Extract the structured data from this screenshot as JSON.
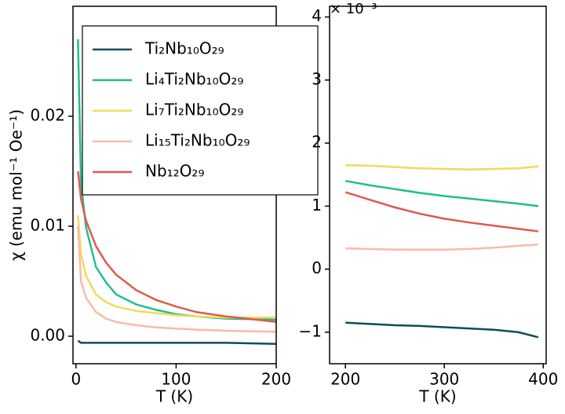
{
  "chart_data": [
    {
      "type": "line",
      "xlabel": "T (K)",
      "ylabel": "χ (emu mol⁻¹ Oe⁻¹)",
      "x": [
        2,
        5,
        10,
        20,
        30,
        40,
        60,
        80,
        100,
        120,
        150,
        200
      ],
      "xlim": [
        -3,
        200
      ],
      "xticks": [
        0,
        100,
        200
      ],
      "ylim": [
        -0.0025,
        0.03
      ],
      "yticks": [
        {
          "value": 0,
          "label": "0.00"
        },
        0.01,
        0.02
      ],
      "legend": "upper right",
      "series": [
        {
          "name": "Ti₂Nb₁₀O₂₉",
          "color": "#0b4f55",
          "values": [
            -0.0004,
            -0.0006,
            -0.0006,
            -0.0006,
            -0.0006,
            -0.0006,
            -0.0006,
            -0.0006,
            -0.0006,
            -0.0006,
            -0.0006,
            -0.0007
          ]
        },
        {
          "name": "Li₄Ti₂Nb₁₀O₂₉",
          "color": "#1fbf8f",
          "values": [
            0.027,
            0.014,
            0.0099,
            0.0063,
            0.0049,
            0.0038,
            0.0029,
            0.0024,
            0.002,
            0.0018,
            0.0016,
            0.0015
          ]
        },
        {
          "name": "Li₇Ti₂Nb₁₀O₂₉",
          "color": "#f3da58",
          "values": [
            0.011,
            0.0075,
            0.0055,
            0.0038,
            0.0031,
            0.0027,
            0.0023,
            0.0021,
            0.0019,
            0.0018,
            0.0017,
            0.0017
          ]
        },
        {
          "name": "Li₁₅Ti₂Nb₁₀O₂₉",
          "color": "#f8bbaa",
          "values": [
            0.01,
            0.005,
            0.0035,
            0.0022,
            0.0016,
            0.0013,
            0.001,
            0.0008,
            0.0007,
            0.0006,
            0.0005,
            0.0004
          ]
        },
        {
          "name": "Nb₁₂O₂₉",
          "color": "#e05a4e",
          "values": [
            0.015,
            0.0125,
            0.0105,
            0.0082,
            0.0067,
            0.0056,
            0.0042,
            0.0033,
            0.0027,
            0.0022,
            0.0018,
            0.0013
          ]
        }
      ]
    },
    {
      "type": "line",
      "xlabel": "T (K)",
      "y_offset_label": "× 10⁻³",
      "x": [
        200,
        225,
        250,
        275,
        300,
        325,
        350,
        375,
        395
      ],
      "xlim": [
        184,
        403
      ],
      "xticks": [
        200,
        300,
        400
      ],
      "ylim": [
        -1.5,
        4.17
      ],
      "yticks": [
        {
          "value": -1,
          "label": "−1"
        },
        0,
        1,
        2,
        3,
        4
      ],
      "series": [
        {
          "color": "#0b4f55",
          "values": [
            -0.85,
            -0.87,
            -0.89,
            -0.9,
            -0.92,
            -0.94,
            -0.96,
            -1.0,
            -1.08
          ]
        },
        {
          "color": "#1fbf8f",
          "values": [
            1.4,
            1.33,
            1.27,
            1.21,
            1.16,
            1.12,
            1.08,
            1.04,
            1.0
          ]
        },
        {
          "color": "#f3da58",
          "values": [
            1.65,
            1.64,
            1.62,
            1.6,
            1.59,
            1.58,
            1.59,
            1.6,
            1.63
          ]
        },
        {
          "color": "#f8bbaa",
          "values": [
            0.33,
            0.32,
            0.31,
            0.31,
            0.31,
            0.32,
            0.34,
            0.37,
            0.39
          ]
        },
        {
          "color": "#e05a4e",
          "values": [
            1.22,
            1.1,
            0.98,
            0.88,
            0.8,
            0.74,
            0.69,
            0.64,
            0.6
          ]
        }
      ]
    }
  ]
}
